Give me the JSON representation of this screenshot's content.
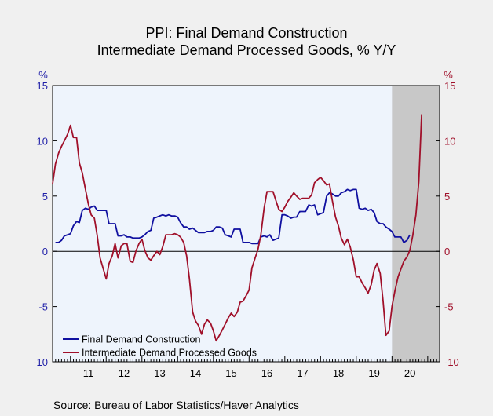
{
  "chart_data": {
    "type": "line",
    "title_line1": "PPI: Final Demand Construction",
    "title_line2": "Intermediate Demand Processed Goods, % Y/Y",
    "source": "Source:  Bureau of Labor Statistics/Haver Analytics",
    "left_axis_unit": "%",
    "right_axis_unit": "%",
    "ylim": [
      -10,
      15
    ],
    "y_ticks": [
      15,
      10,
      5,
      0,
      -5,
      -10
    ],
    "xlim": [
      2010.5,
      2021.333
    ],
    "x_tick_labels": [
      "11",
      "12",
      "13",
      "14",
      "15",
      "16",
      "17",
      "18",
      "19",
      "20"
    ],
    "x_tick_positions": [
      2011.5,
      2012.5,
      2013.5,
      2014.5,
      2015.5,
      2016.5,
      2017.5,
      2018.5,
      2019.5,
      2020.5
    ],
    "recession_shade": [
      2020.0,
      2021.333
    ],
    "grid": false,
    "legend_position": "bottom-left",
    "colors": {
      "left_axis": "#1f1fa8",
      "right_axis": "#a0102a",
      "shade": "#c8c8c8",
      "plot_bg": "#eef4fc"
    },
    "series": [
      {
        "name": "Final Demand Construction",
        "color": "#1010a0",
        "axis": "left",
        "points": [
          [
            2010.58,
            0.8
          ],
          [
            2010.67,
            0.8
          ],
          [
            2010.75,
            1.0
          ],
          [
            2010.83,
            1.4
          ],
          [
            2010.92,
            1.5
          ],
          [
            2011.0,
            1.6
          ],
          [
            2011.08,
            2.3
          ],
          [
            2011.17,
            2.7
          ],
          [
            2011.25,
            2.6
          ],
          [
            2011.33,
            3.7
          ],
          [
            2011.42,
            3.9
          ],
          [
            2011.5,
            3.8
          ],
          [
            2011.58,
            4.0
          ],
          [
            2011.67,
            4.1
          ],
          [
            2011.75,
            3.7
          ],
          [
            2011.83,
            3.7
          ],
          [
            2011.92,
            3.7
          ],
          [
            2012.0,
            3.7
          ],
          [
            2012.08,
            2.5
          ],
          [
            2012.17,
            2.5
          ],
          [
            2012.25,
            2.5
          ],
          [
            2012.33,
            1.4
          ],
          [
            2012.42,
            1.4
          ],
          [
            2012.5,
            1.5
          ],
          [
            2012.58,
            1.3
          ],
          [
            2012.67,
            1.3
          ],
          [
            2012.75,
            1.2
          ],
          [
            2012.83,
            1.2
          ],
          [
            2012.92,
            1.2
          ],
          [
            2013.0,
            1.3
          ],
          [
            2013.08,
            1.5
          ],
          [
            2013.17,
            1.8
          ],
          [
            2013.25,
            1.9
          ],
          [
            2013.33,
            3.0
          ],
          [
            2013.42,
            3.1
          ],
          [
            2013.5,
            3.2
          ],
          [
            2013.58,
            3.3
          ],
          [
            2013.67,
            3.2
          ],
          [
            2013.75,
            3.3
          ],
          [
            2013.83,
            3.2
          ],
          [
            2013.92,
            3.2
          ],
          [
            2014.0,
            3.1
          ],
          [
            2014.08,
            2.6
          ],
          [
            2014.17,
            2.2
          ],
          [
            2014.25,
            2.2
          ],
          [
            2014.33,
            2.0
          ],
          [
            2014.42,
            2.1
          ],
          [
            2014.5,
            1.9
          ],
          [
            2014.58,
            1.7
          ],
          [
            2014.67,
            1.7
          ],
          [
            2014.75,
            1.7
          ],
          [
            2014.83,
            1.8
          ],
          [
            2014.92,
            1.8
          ],
          [
            2015.0,
            1.9
          ],
          [
            2015.08,
            2.2
          ],
          [
            2015.17,
            2.2
          ],
          [
            2015.25,
            2.1
          ],
          [
            2015.33,
            1.5
          ],
          [
            2015.42,
            1.4
          ],
          [
            2015.5,
            1.3
          ],
          [
            2015.58,
            2.0
          ],
          [
            2015.67,
            2.0
          ],
          [
            2015.75,
            2.0
          ],
          [
            2015.83,
            0.8
          ],
          [
            2015.92,
            0.8
          ],
          [
            2016.0,
            0.8
          ],
          [
            2016.08,
            0.7
          ],
          [
            2016.17,
            0.7
          ],
          [
            2016.25,
            0.7
          ],
          [
            2016.33,
            1.3
          ],
          [
            2016.42,
            1.4
          ],
          [
            2016.5,
            1.3
          ],
          [
            2016.58,
            1.5
          ],
          [
            2016.67,
            1.0
          ],
          [
            2016.75,
            1.1
          ],
          [
            2016.83,
            1.2
          ],
          [
            2016.92,
            3.3
          ],
          [
            2017.0,
            3.3
          ],
          [
            2017.08,
            3.2
          ],
          [
            2017.17,
            3.0
          ],
          [
            2017.25,
            3.1
          ],
          [
            2017.33,
            3.1
          ],
          [
            2017.42,
            3.6
          ],
          [
            2017.5,
            3.6
          ],
          [
            2017.58,
            3.6
          ],
          [
            2017.67,
            4.2
          ],
          [
            2017.75,
            4.1
          ],
          [
            2017.83,
            4.2
          ],
          [
            2017.92,
            3.3
          ],
          [
            2018.0,
            3.4
          ],
          [
            2018.08,
            3.5
          ],
          [
            2018.17,
            5.0
          ],
          [
            2018.25,
            5.3
          ],
          [
            2018.33,
            5.2
          ],
          [
            2018.42,
            5.0
          ],
          [
            2018.5,
            5.0
          ],
          [
            2018.58,
            5.3
          ],
          [
            2018.67,
            5.4
          ],
          [
            2018.75,
            5.6
          ],
          [
            2018.83,
            5.5
          ],
          [
            2018.92,
            5.6
          ],
          [
            2019.0,
            5.6
          ],
          [
            2019.08,
            3.9
          ],
          [
            2019.17,
            3.8
          ],
          [
            2019.25,
            3.9
          ],
          [
            2019.33,
            3.7
          ],
          [
            2019.42,
            3.8
          ],
          [
            2019.5,
            3.5
          ],
          [
            2019.58,
            2.7
          ],
          [
            2019.67,
            2.5
          ],
          [
            2019.75,
            2.5
          ],
          [
            2019.83,
            2.2
          ],
          [
            2019.92,
            2.0
          ],
          [
            2020.0,
            1.8
          ],
          [
            2020.08,
            1.3
          ],
          [
            2020.17,
            1.3
          ],
          [
            2020.25,
            1.3
          ],
          [
            2020.33,
            0.8
          ],
          [
            2020.42,
            1.0
          ],
          [
            2020.5,
            1.5
          ]
        ]
      },
      {
        "name": "Intermediate Demand Processed Goods",
        "color": "#a0102a",
        "axis": "right",
        "points": [
          [
            2010.5,
            6.1
          ],
          [
            2010.58,
            7.9
          ],
          [
            2010.67,
            8.9
          ],
          [
            2010.75,
            9.5
          ],
          [
            2010.83,
            10.0
          ],
          [
            2010.92,
            10.6
          ],
          [
            2011.0,
            11.4
          ],
          [
            2011.08,
            10.3
          ],
          [
            2011.17,
            10.3
          ],
          [
            2011.25,
            8.0
          ],
          [
            2011.33,
            7.1
          ],
          [
            2011.42,
            5.6
          ],
          [
            2011.5,
            4.3
          ],
          [
            2011.58,
            3.3
          ],
          [
            2011.67,
            3.0
          ],
          [
            2011.75,
            1.4
          ],
          [
            2011.83,
            -0.6
          ],
          [
            2011.92,
            -1.6
          ],
          [
            2012.0,
            -2.5
          ],
          [
            2012.08,
            -1.1
          ],
          [
            2012.17,
            -0.4
          ],
          [
            2012.25,
            0.7
          ],
          [
            2012.33,
            -0.6
          ],
          [
            2012.42,
            0.5
          ],
          [
            2012.5,
            0.7
          ],
          [
            2012.58,
            0.7
          ],
          [
            2012.67,
            -0.9
          ],
          [
            2012.75,
            -1.0
          ],
          [
            2012.83,
            0.0
          ],
          [
            2012.92,
            0.7
          ],
          [
            2013.0,
            1.1
          ],
          [
            2013.08,
            0.1
          ],
          [
            2013.17,
            -0.6
          ],
          [
            2013.25,
            -0.8
          ],
          [
            2013.33,
            -0.4
          ],
          [
            2013.42,
            0.0
          ],
          [
            2013.5,
            -0.3
          ],
          [
            2013.58,
            0.4
          ],
          [
            2013.67,
            1.5
          ],
          [
            2013.75,
            1.5
          ],
          [
            2013.83,
            1.5
          ],
          [
            2013.92,
            1.6
          ],
          [
            2014.0,
            1.5
          ],
          [
            2014.08,
            1.3
          ],
          [
            2014.17,
            0.8
          ],
          [
            2014.25,
            -0.4
          ],
          [
            2014.33,
            -2.5
          ],
          [
            2014.42,
            -5.5
          ],
          [
            2014.5,
            -6.3
          ],
          [
            2014.58,
            -6.7
          ],
          [
            2014.67,
            -7.5
          ],
          [
            2014.75,
            -6.6
          ],
          [
            2014.83,
            -6.2
          ],
          [
            2014.92,
            -6.5
          ],
          [
            2015.0,
            -7.2
          ],
          [
            2015.08,
            -8.1
          ],
          [
            2015.17,
            -7.6
          ],
          [
            2015.25,
            -7.1
          ],
          [
            2015.33,
            -6.6
          ],
          [
            2015.42,
            -6.0
          ],
          [
            2015.5,
            -5.6
          ],
          [
            2015.58,
            -5.9
          ],
          [
            2015.67,
            -5.5
          ],
          [
            2015.75,
            -4.6
          ],
          [
            2015.83,
            -4.5
          ],
          [
            2015.92,
            -4.0
          ],
          [
            2016.0,
            -3.5
          ],
          [
            2016.08,
            -1.5
          ],
          [
            2016.17,
            -0.6
          ],
          [
            2016.25,
            0.2
          ],
          [
            2016.33,
            1.5
          ],
          [
            2016.42,
            3.9
          ],
          [
            2016.5,
            5.4
          ],
          [
            2016.58,
            5.4
          ],
          [
            2016.67,
            5.4
          ],
          [
            2016.75,
            4.6
          ],
          [
            2016.83,
            3.8
          ],
          [
            2016.92,
            3.6
          ],
          [
            2017.0,
            4.0
          ],
          [
            2017.08,
            4.5
          ],
          [
            2017.17,
            4.9
          ],
          [
            2017.25,
            5.3
          ],
          [
            2017.33,
            5.0
          ],
          [
            2017.42,
            4.7
          ],
          [
            2017.5,
            4.8
          ],
          [
            2017.58,
            4.8
          ],
          [
            2017.67,
            4.8
          ],
          [
            2017.75,
            5.1
          ],
          [
            2017.83,
            6.2
          ],
          [
            2017.92,
            6.5
          ],
          [
            2018.0,
            6.7
          ],
          [
            2018.08,
            6.4
          ],
          [
            2018.17,
            6.0
          ],
          [
            2018.25,
            6.1
          ],
          [
            2018.33,
            4.6
          ],
          [
            2018.42,
            3.1
          ],
          [
            2018.5,
            2.3
          ],
          [
            2018.58,
            1.2
          ],
          [
            2018.67,
            0.6
          ],
          [
            2018.75,
            1.1
          ],
          [
            2018.83,
            0.4
          ],
          [
            2018.92,
            -0.8
          ],
          [
            2019.0,
            -2.3
          ],
          [
            2019.08,
            -2.3
          ],
          [
            2019.17,
            -2.9
          ],
          [
            2019.25,
            -3.3
          ],
          [
            2019.33,
            -3.8
          ],
          [
            2019.42,
            -3.0
          ],
          [
            2019.5,
            -1.7
          ],
          [
            2019.58,
            -1.1
          ],
          [
            2019.67,
            -2.0
          ],
          [
            2019.75,
            -4.5
          ],
          [
            2019.83,
            -7.6
          ],
          [
            2019.92,
            -7.2
          ],
          [
            2020.0,
            -5.0
          ],
          [
            2020.08,
            -3.6
          ],
          [
            2020.17,
            -2.3
          ],
          [
            2020.25,
            -1.6
          ],
          [
            2020.33,
            -0.9
          ],
          [
            2020.42,
            -0.5
          ],
          [
            2020.5,
            0.1
          ],
          [
            2020.58,
            1.4
          ],
          [
            2020.67,
            3.3
          ],
          [
            2020.75,
            6.3
          ],
          [
            2020.83,
            12.4
          ]
        ]
      }
    ]
  }
}
